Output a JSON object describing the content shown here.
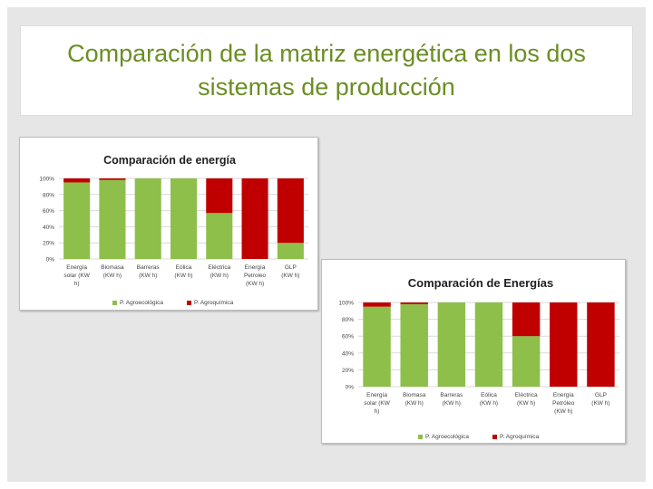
{
  "slide": {
    "title": "Comparación de la matriz energética en los dos sistemas de producción"
  },
  "colors": {
    "agro_ecological": "#8ebf4a",
    "agro_chemical": "#c00000",
    "title": "#6b8e23"
  },
  "chart_data": [
    {
      "type": "bar",
      "stacked": true,
      "title": "Comparación de energía",
      "categories": [
        [
          "Energía",
          "solar (KW",
          "h)"
        ],
        [
          "Biomasa",
          "(KW h)"
        ],
        [
          "Barreras",
          "(KW h)"
        ],
        [
          "Eólica",
          "(KW h)"
        ],
        [
          "Eléctrica",
          "(KW h)"
        ],
        [
          "Energía",
          "Petroleo",
          "(KW h)"
        ],
        [
          "GLP",
          "(KW h)"
        ]
      ],
      "series": [
        {
          "name": "P. Agroecológica",
          "values": [
            95,
            98,
            100,
            100,
            57,
            0,
            20
          ]
        },
        {
          "name": "P. Agroquímica",
          "values": [
            5,
            2,
            0,
            0,
            43,
            100,
            80
          ]
        }
      ],
      "yticks": [
        "0%",
        "20%",
        "40%",
        "60%",
        "80%",
        "100%"
      ],
      "ylim": [
        0,
        100
      ],
      "legend": "bottom"
    },
    {
      "type": "bar",
      "stacked": true,
      "title": "Comparación de Energías",
      "categories": [
        [
          "Energía",
          "solar (KW",
          "h)"
        ],
        [
          "Biomasa",
          "(KW h)"
        ],
        [
          "Barreras",
          "(KW h)"
        ],
        [
          "Eólica",
          "(KW h)"
        ],
        [
          "Eléctrica",
          "(KW h)"
        ],
        [
          "Energía",
          "Petróleo",
          "(KW h)"
        ],
        [
          "GLP",
          "(KW h)"
        ]
      ],
      "series": [
        {
          "name": "P. Agroecológica",
          "values": [
            95,
            98,
            100,
            100,
            60,
            0,
            0
          ]
        },
        {
          "name": "P. Agroquímica",
          "values": [
            5,
            2,
            0,
            0,
            40,
            100,
            100
          ]
        }
      ],
      "yticks": [
        "0%",
        "20%",
        "40%",
        "60%",
        "80%",
        "100%"
      ],
      "ylim": [
        0,
        100
      ],
      "legend": "bottom"
    }
  ]
}
